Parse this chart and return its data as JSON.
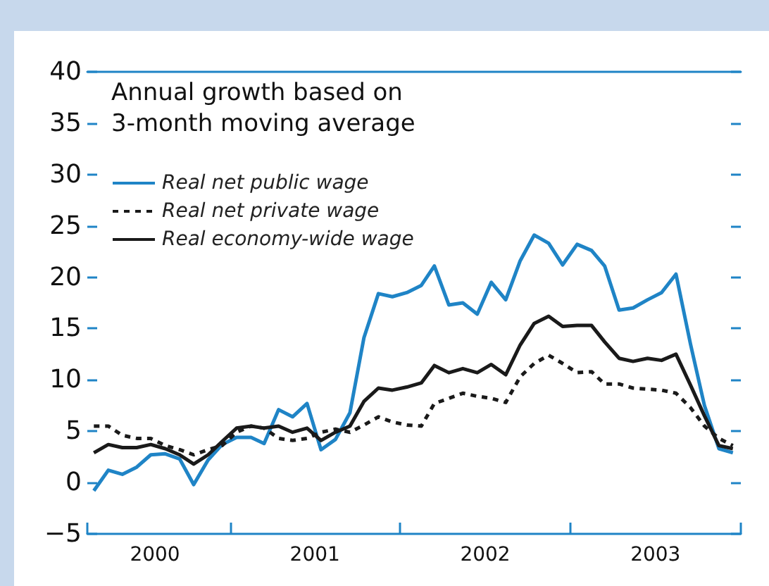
{
  "chart_data": {
    "type": "line",
    "title": "Annual growth based on 3-month moving average",
    "x": [
      "2000-03-15",
      "2000-04-15",
      "2000-05-15",
      "2000-06-15",
      "2000-07-15",
      "2000-08-15",
      "2000-09-15",
      "2000-10-15",
      "2000-11-15",
      "2000-12-15",
      "2001-01-15",
      "2001-02-15",
      "2001-03-15",
      "2001-04-15",
      "2001-05-15",
      "2001-06-15",
      "2001-07-15",
      "2001-08-15",
      "2001-09-15",
      "2001-10-15",
      "2001-11-15",
      "2001-12-15",
      "2002-01-15",
      "2002-02-15",
      "2002-03-15",
      "2002-04-15",
      "2002-05-15",
      "2002-06-15",
      "2002-07-15",
      "2002-08-15",
      "2002-09-15",
      "2002-10-15",
      "2002-11-15",
      "2002-12-15",
      "2003-01-15",
      "2003-02-15",
      "2003-03-15",
      "2003-04-15",
      "2003-05-15",
      "2003-06-15",
      "2003-07-15",
      "2003-08-15",
      "2003-09-15",
      "2003-10-15",
      "2003-11-15",
      "2003-12-15"
    ],
    "series": [
      {
        "name": "Real net public wage",
        "color": "#1f84c6",
        "line_style": "solid",
        "values": [
          -0.8,
          1.2,
          0.8,
          1.5,
          2.7,
          2.8,
          2.3,
          -0.2,
          2.2,
          3.7,
          4.4,
          4.4,
          3.8,
          7.1,
          6.4,
          7.7,
          3.2,
          4.2,
          6.8,
          14.1,
          18.4,
          18.1,
          18.5,
          19.2,
          21.1,
          17.3,
          17.5,
          16.4,
          19.5,
          17.8,
          21.6,
          24.1,
          23.3,
          21.2,
          23.2,
          22.6,
          21.1,
          16.8,
          17.0,
          17.8,
          18.5,
          20.3,
          13.5,
          7.5,
          3.3,
          2.9
        ]
      },
      {
        "name": "Real net private wage",
        "color": "#1a1a1a",
        "line_style": "dashed",
        "values": [
          5.5,
          5.5,
          4.6,
          4.3,
          4.3,
          3.6,
          3.2,
          2.7,
          3.2,
          3.6,
          4.9,
          5.5,
          5.3,
          4.3,
          4.1,
          4.3,
          4.9,
          5.2,
          4.9,
          5.6,
          6.4,
          5.9,
          5.6,
          5.5,
          7.7,
          8.2,
          8.7,
          8.4,
          8.2,
          7.8,
          10.3,
          11.6,
          12.4,
          11.6,
          10.7,
          10.8,
          9.6,
          9.6,
          9.2,
          9.1,
          9.0,
          8.7,
          7.3,
          5.5,
          4.3,
          3.6
        ]
      },
      {
        "name": "Real economy-wide wage",
        "color": "#1a1a1a",
        "line_style": "solid",
        "values": [
          2.9,
          3.7,
          3.4,
          3.4,
          3.7,
          3.3,
          2.7,
          1.8,
          2.7,
          4.0,
          5.3,
          5.5,
          5.3,
          5.5,
          4.9,
          5.3,
          4.1,
          4.9,
          5.5,
          7.9,
          9.2,
          9.0,
          9.3,
          9.7,
          11.4,
          10.7,
          11.1,
          10.7,
          11.5,
          10.5,
          13.4,
          15.5,
          16.2,
          15.2,
          15.3,
          15.3,
          13.7,
          12.1,
          11.8,
          12.1,
          11.9,
          12.5,
          9.5,
          6.5,
          3.6,
          3.3
        ]
      }
    ],
    "xlim": [
      "2000-03-01",
      "2004-01-01"
    ],
    "xticks": [
      {
        "value": "2000-03-01",
        "label": null
      },
      {
        "value": "2000-07-24",
        "label": "2000"
      },
      {
        "value": "2001-01-01",
        "label": null
      },
      {
        "value": "2001-07-02",
        "label": "2001"
      },
      {
        "value": "2002-01-01",
        "label": null
      },
      {
        "value": "2002-07-02",
        "label": "2002"
      },
      {
        "value": "2003-01-01",
        "label": null
      },
      {
        "value": "2003-07-02",
        "label": "2003"
      },
      {
        "value": "2004-01-01",
        "label": null
      }
    ],
    "ylim": [
      -5,
      40
    ],
    "yticks": [
      -5,
      0,
      5,
      10,
      15,
      20,
      25,
      30,
      35,
      40
    ],
    "legend": "top left",
    "grid": false,
    "marker": "none"
  }
}
